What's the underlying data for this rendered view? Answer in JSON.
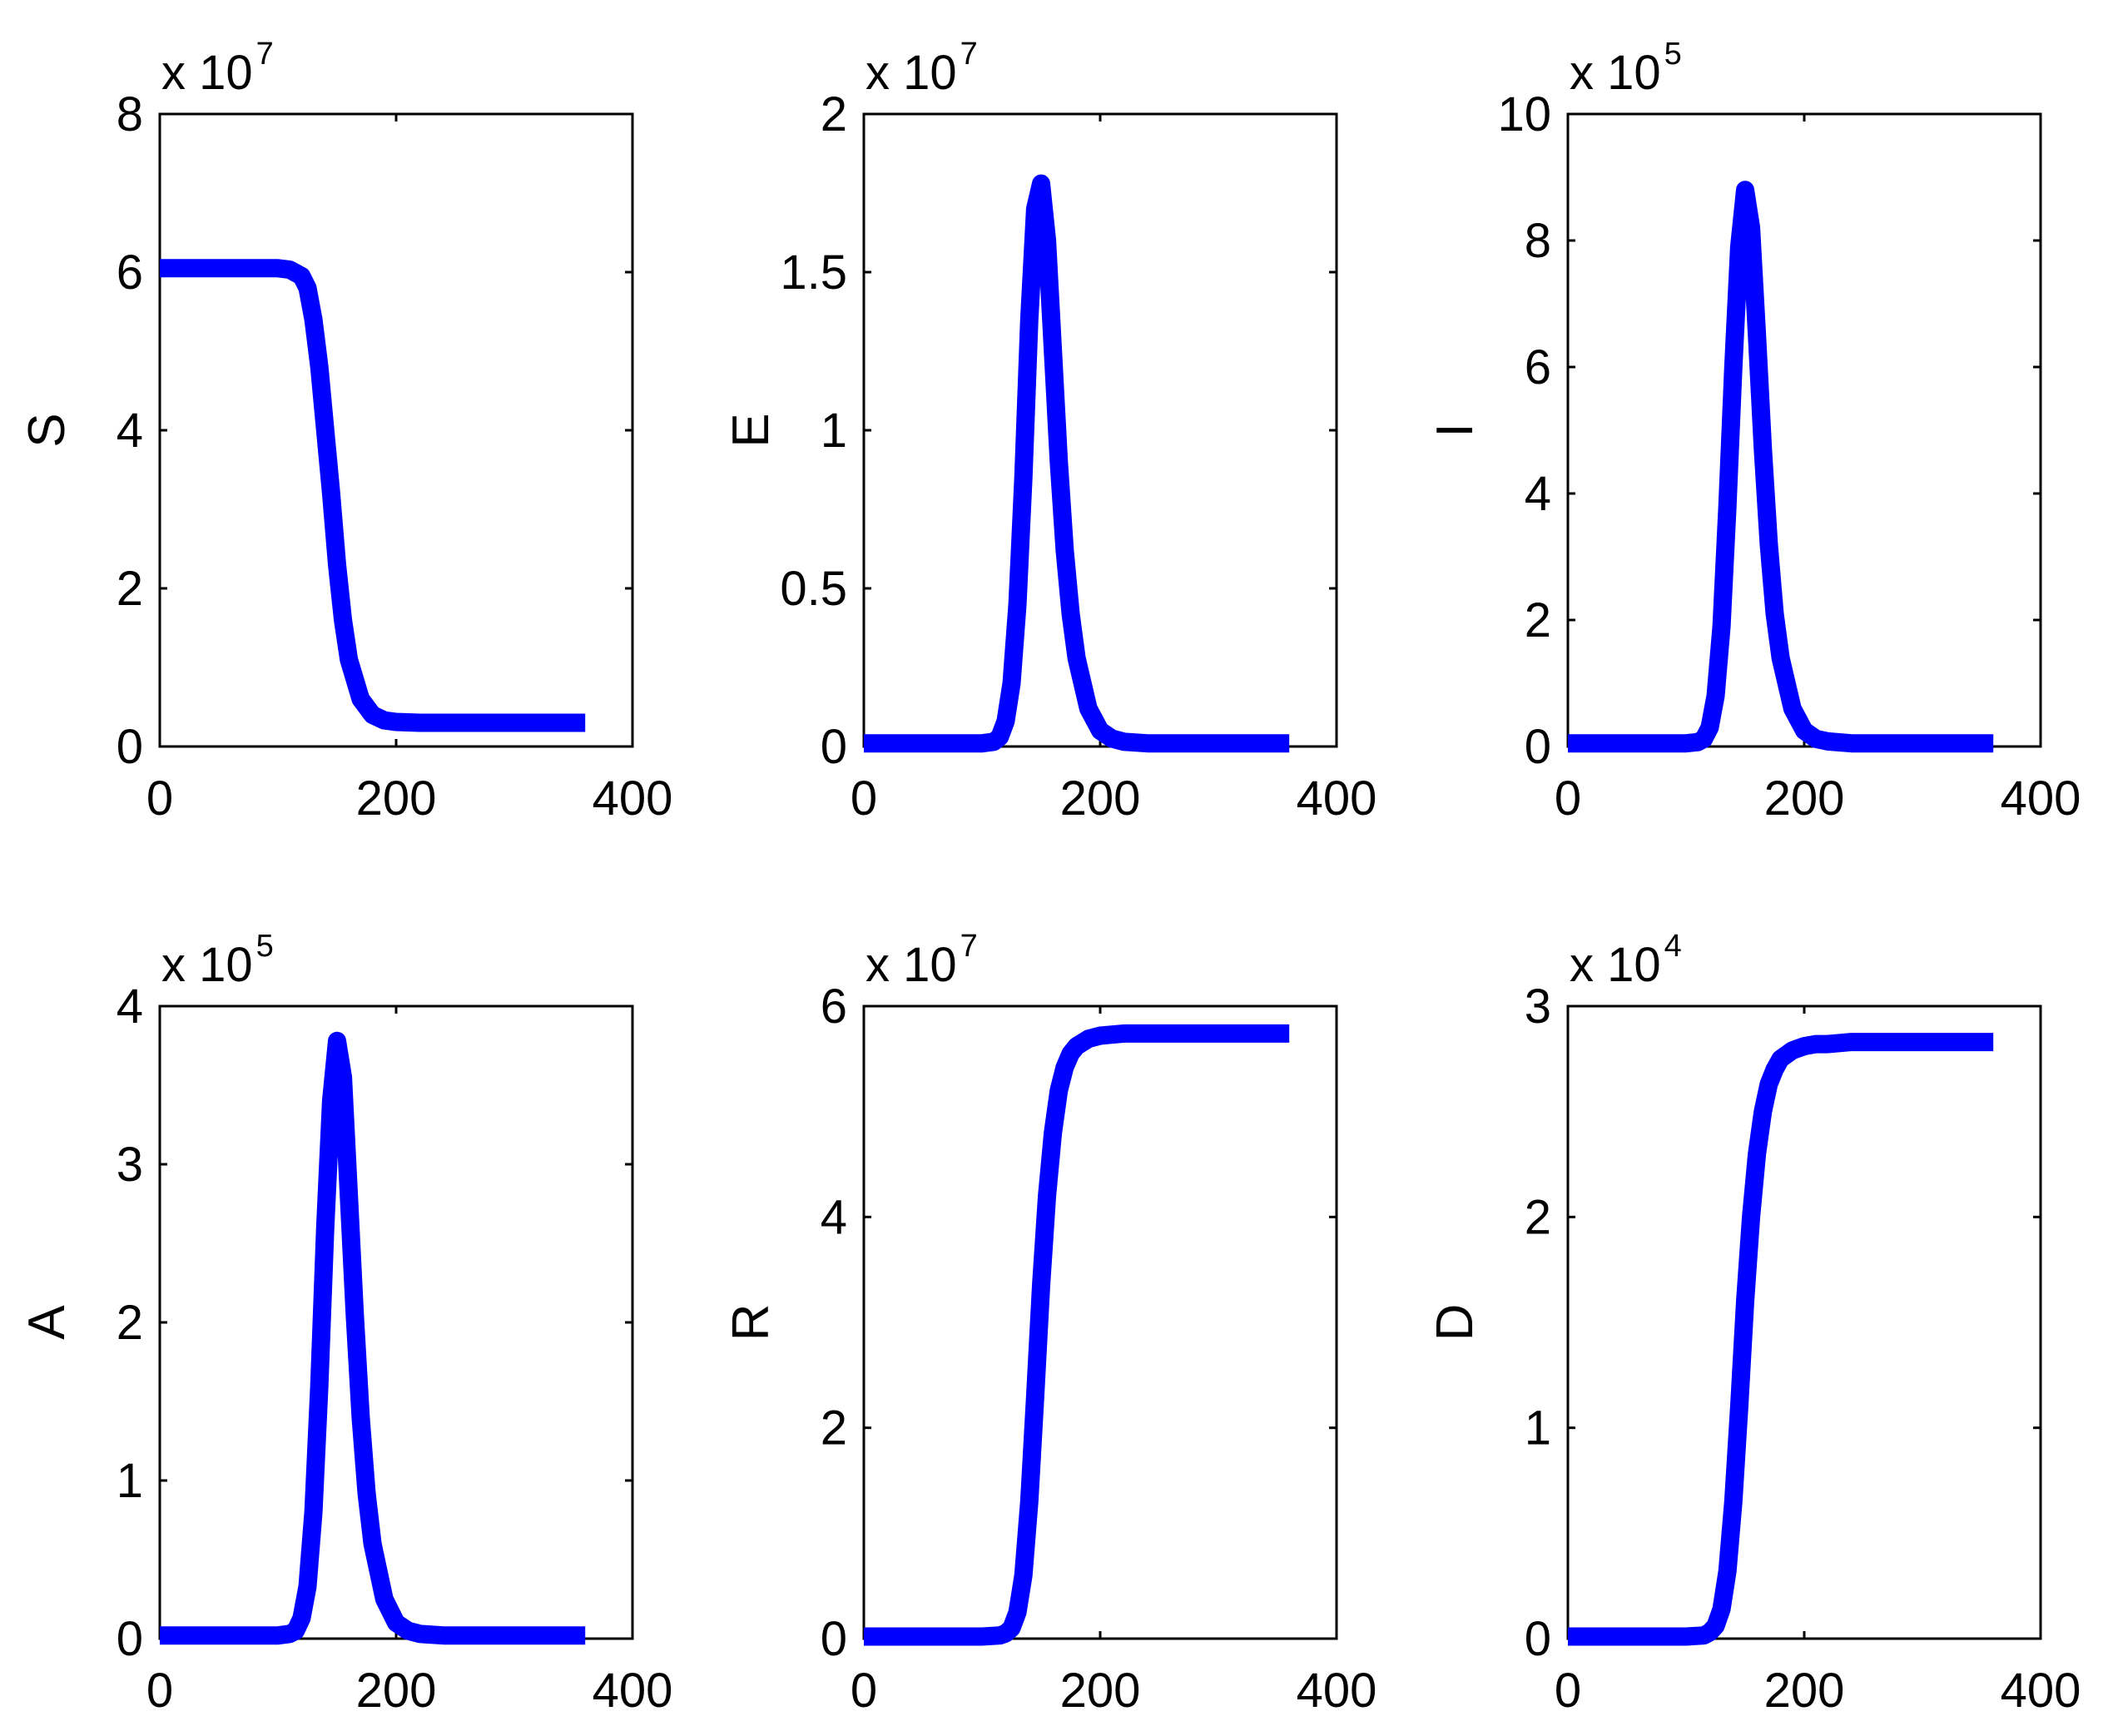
{
  "chart_data": [
    {
      "type": "line",
      "ylabel": "S",
      "xlabel": "",
      "scale_label": "x 10",
      "scale_exponent": "7",
      "xlim": [
        0,
        400
      ],
      "ylim": [
        0,
        8
      ],
      "x_ticks": [
        0,
        200,
        400
      ],
      "y_ticks": [
        0,
        2,
        4,
        6,
        8
      ],
      "x_tick_labels": [
        "0",
        "200",
        "400"
      ],
      "y_tick_labels": [
        "0",
        "2",
        "4",
        "6",
        "8"
      ],
      "series": [
        {
          "name": "S",
          "color": "#0000ff",
          "x": [
            0,
            100,
            110,
            120,
            125,
            130,
            135,
            140,
            145,
            150,
            155,
            160,
            170,
            180,
            190,
            200,
            220,
            250,
            300,
            360
          ],
          "values": [
            6.05,
            6.05,
            6.03,
            5.95,
            5.8,
            5.4,
            4.8,
            4.0,
            3.2,
            2.3,
            1.6,
            1.1,
            0.6,
            0.4,
            0.33,
            0.31,
            0.3,
            0.3,
            0.3,
            0.3
          ]
        }
      ]
    },
    {
      "type": "line",
      "ylabel": "E",
      "xlabel": "",
      "scale_label": "x 10",
      "scale_exponent": "7",
      "xlim": [
        0,
        400
      ],
      "ylim": [
        0,
        2
      ],
      "x_ticks": [
        0,
        200,
        400
      ],
      "y_ticks": [
        0,
        0.5,
        1,
        1.5,
        2
      ],
      "x_tick_labels": [
        "0",
        "200",
        "400"
      ],
      "y_tick_labels": [
        "0",
        "0.5",
        "1",
        "1.5",
        "2"
      ],
      "series": [
        {
          "name": "E",
          "color": "#0000ff",
          "x": [
            0,
            100,
            110,
            115,
            120,
            125,
            130,
            135,
            140,
            145,
            150,
            155,
            160,
            165,
            170,
            175,
            180,
            190,
            200,
            210,
            220,
            240,
            260,
            300,
            360
          ],
          "values": [
            0.01,
            0.01,
            0.015,
            0.03,
            0.08,
            0.2,
            0.45,
            0.85,
            1.35,
            1.7,
            1.78,
            1.6,
            1.25,
            0.9,
            0.62,
            0.42,
            0.28,
            0.12,
            0.05,
            0.025,
            0.015,
            0.01,
            0.01,
            0.01,
            0.01
          ]
        }
      ]
    },
    {
      "type": "line",
      "ylabel": "I",
      "xlabel": "",
      "scale_label": "x 10",
      "scale_exponent": "5",
      "xlim": [
        0,
        400
      ],
      "ylim": [
        0,
        10
      ],
      "x_ticks": [
        0,
        200,
        400
      ],
      "y_ticks": [
        0,
        2,
        4,
        6,
        8,
        10
      ],
      "x_tick_labels": [
        "0",
        "200",
        "400"
      ],
      "y_tick_labels": [
        "0",
        "2",
        "4",
        "6",
        "8",
        "10"
      ],
      "series": [
        {
          "name": "I",
          "color": "#0000ff",
          "x": [
            0,
            100,
            110,
            115,
            120,
            125,
            130,
            135,
            140,
            145,
            150,
            155,
            160,
            165,
            170,
            175,
            180,
            190,
            200,
            210,
            220,
            240,
            260,
            300,
            360
          ],
          "values": [
            0.05,
            0.05,
            0.07,
            0.12,
            0.3,
            0.8,
            1.9,
            3.8,
            6.0,
            7.9,
            8.8,
            8.2,
            6.5,
            4.7,
            3.2,
            2.1,
            1.4,
            0.6,
            0.25,
            0.12,
            0.08,
            0.05,
            0.05,
            0.05,
            0.05
          ]
        }
      ]
    },
    {
      "type": "line",
      "ylabel": "A",
      "xlabel": "",
      "scale_label": "x 10",
      "scale_exponent": "5",
      "xlim": [
        0,
        400
      ],
      "ylim": [
        0,
        4
      ],
      "x_ticks": [
        0,
        200,
        400
      ],
      "y_ticks": [
        0,
        1,
        2,
        3,
        4
      ],
      "x_tick_labels": [
        "0",
        "200",
        "400"
      ],
      "y_tick_labels": [
        "0",
        "1",
        "2",
        "3",
        "4"
      ],
      "series": [
        {
          "name": "A",
          "color": "#0000ff",
          "x": [
            0,
            100,
            110,
            115,
            120,
            125,
            130,
            135,
            140,
            145,
            150,
            155,
            160,
            165,
            170,
            175,
            180,
            190,
            200,
            210,
            220,
            240,
            260,
            300,
            360
          ],
          "values": [
            0.02,
            0.02,
            0.03,
            0.05,
            0.13,
            0.33,
            0.8,
            1.6,
            2.6,
            3.4,
            3.78,
            3.55,
            2.8,
            2.05,
            1.4,
            0.92,
            0.6,
            0.25,
            0.1,
            0.05,
            0.03,
            0.02,
            0.02,
            0.02,
            0.02
          ]
        }
      ]
    },
    {
      "type": "line",
      "ylabel": "R",
      "xlabel": "",
      "scale_label": "x 10",
      "scale_exponent": "7",
      "xlim": [
        0,
        400
      ],
      "ylim": [
        0,
        6
      ],
      "x_ticks": [
        0,
        200,
        400
      ],
      "y_ticks": [
        0,
        2,
        4,
        6
      ],
      "x_tick_labels": [
        "0",
        "200",
        "400"
      ],
      "y_tick_labels": [
        "0",
        "2",
        "4",
        "6"
      ],
      "series": [
        {
          "name": "R",
          "color": "#0000ff",
          "x": [
            0,
            100,
            115,
            120,
            125,
            130,
            135,
            140,
            145,
            150,
            155,
            160,
            165,
            170,
            175,
            180,
            190,
            200,
            210,
            220,
            240,
            260,
            300,
            360
          ],
          "values": [
            0.02,
            0.02,
            0.03,
            0.05,
            0.1,
            0.25,
            0.6,
            1.3,
            2.3,
            3.35,
            4.2,
            4.8,
            5.2,
            5.42,
            5.55,
            5.62,
            5.69,
            5.72,
            5.73,
            5.74,
            5.74,
            5.74,
            5.74,
            5.74
          ]
        }
      ]
    },
    {
      "type": "line",
      "ylabel": "D",
      "xlabel": "",
      "scale_label": "x 10",
      "scale_exponent": "4",
      "xlim": [
        0,
        400
      ],
      "ylim": [
        0,
        3
      ],
      "x_ticks": [
        0,
        200,
        400
      ],
      "y_ticks": [
        0,
        1,
        2,
        3
      ],
      "x_tick_labels": [
        "0",
        "200",
        "400"
      ],
      "y_tick_labels": [
        "0",
        "1",
        "2",
        "3"
      ],
      "series": [
        {
          "name": "D",
          "color": "#0000ff",
          "x": [
            0,
            100,
            115,
            120,
            125,
            130,
            135,
            140,
            145,
            150,
            155,
            160,
            165,
            170,
            175,
            180,
            190,
            200,
            210,
            220,
            240,
            260,
            300,
            360
          ],
          "values": [
            0.01,
            0.01,
            0.015,
            0.03,
            0.06,
            0.14,
            0.32,
            0.65,
            1.1,
            1.6,
            2.0,
            2.3,
            2.5,
            2.63,
            2.7,
            2.75,
            2.79,
            2.81,
            2.82,
            2.82,
            2.83,
            2.83,
            2.83,
            2.83
          ]
        }
      ]
    }
  ]
}
